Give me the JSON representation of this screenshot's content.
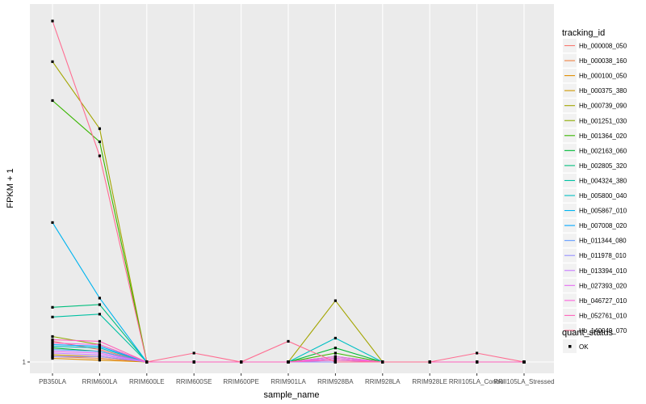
{
  "chart_data": {
    "type": "line",
    "xlabel": "sample_name",
    "ylabel": "FPKM + 1",
    "y_ticks": [
      "1"
    ],
    "log_scale_y": true,
    "grid": true,
    "legend_position": "right",
    "categories": [
      "PB350LA",
      "RRIM600LA",
      "RRIM600LE",
      "RRIM600SE",
      "RRIM600PE",
      "RRIM901LA",
      "RRIM928BA",
      "RRIM928LA",
      "RRIM928LE",
      "RRII105LA_Control",
      "RRII105LA_Stressed"
    ],
    "legend_title": "tracking_id",
    "point_legend_title": "quant_status",
    "point_legend_entry": "OK",
    "series": [
      {
        "name": "Hb_000008_050",
        "color": "#F8766D",
        "values": [
          1.12,
          1.07,
          1,
          1,
          1,
          1,
          1,
          1,
          1,
          1,
          1
        ]
      },
      {
        "name": "Hb_000038_160",
        "color": "#EE8043",
        "values": [
          1.03,
          1.02,
          1,
          1,
          1,
          1,
          1,
          1,
          1,
          1,
          1
        ]
      },
      {
        "name": "Hb_000100_050",
        "color": "#DF8D00",
        "values": [
          1.02,
          1.01,
          1,
          1,
          1,
          1,
          1,
          1,
          1,
          1,
          1
        ]
      },
      {
        "name": "Hb_000375_380",
        "color": "#CD9600",
        "values": [
          1.04,
          1.03,
          1,
          1,
          1,
          1,
          1,
          1,
          1,
          1,
          1
        ]
      },
      {
        "name": "Hb_000739_090",
        "color": "#A3A500",
        "values": [
          5.2,
          3.6,
          1,
          1,
          1,
          1,
          1.4,
          1,
          1,
          1,
          1
        ]
      },
      {
        "name": "Hb_001251_030",
        "color": "#8EAB00",
        "values": [
          1.15,
          1.1,
          1,
          1,
          1,
          1,
          1.03,
          1,
          1,
          1,
          1
        ]
      },
      {
        "name": "Hb_001364_020",
        "color": "#39B600",
        "values": [
          4.2,
          3.35,
          1,
          1,
          1,
          1,
          1.05,
          1,
          1,
          1,
          1
        ]
      },
      {
        "name": "Hb_002163_060",
        "color": "#00BA38",
        "values": [
          1.08,
          1.06,
          1,
          1,
          1,
          1,
          1.08,
          1,
          1,
          1,
          1
        ]
      },
      {
        "name": "Hb_002805_320",
        "color": "#00BF7D",
        "values": [
          1.35,
          1.37,
          1,
          1,
          1,
          1,
          1,
          1,
          1,
          1,
          1
        ]
      },
      {
        "name": "Hb_004324_380",
        "color": "#00C1A3",
        "values": [
          1.28,
          1.3,
          1,
          1,
          1,
          1,
          1.02,
          1,
          1,
          1,
          1
        ]
      },
      {
        "name": "Hb_005800_040",
        "color": "#00BFC4",
        "values": [
          1.09,
          1.08,
          1,
          1,
          1,
          1,
          1.14,
          1,
          1,
          1,
          1
        ]
      },
      {
        "name": "Hb_005867_010",
        "color": "#00B4EF",
        "values": [
          2.15,
          1.42,
          1,
          1,
          1,
          1,
          1,
          1,
          1,
          1,
          1
        ]
      },
      {
        "name": "Hb_007008_020",
        "color": "#00A9FF",
        "values": [
          1.1,
          1.09,
          1,
          1,
          1,
          1,
          1,
          1,
          1,
          1,
          1
        ]
      },
      {
        "name": "Hb_011344_080",
        "color": "#619CFF",
        "values": [
          1.07,
          1.06,
          1,
          1,
          1,
          1,
          1.01,
          1,
          1,
          1,
          1
        ]
      },
      {
        "name": "Hb_011978_010",
        "color": "#9590FF",
        "values": [
          1.03,
          1.03,
          1,
          1,
          1,
          1,
          1,
          1,
          1,
          1,
          1
        ]
      },
      {
        "name": "Hb_013394_010",
        "color": "#C77CFF",
        "values": [
          1.05,
          1.04,
          1,
          1,
          1,
          1,
          1.02,
          1,
          1,
          1,
          1
        ]
      },
      {
        "name": "Hb_027393_020",
        "color": "#E76BF3",
        "values": [
          1.06,
          1.05,
          1,
          1,
          1,
          1,
          1.03,
          1,
          1,
          1,
          1
        ]
      },
      {
        "name": "Hb_046727_010",
        "color": "#FA62DB",
        "values": [
          1.11,
          1.1,
          1,
          1,
          1,
          1,
          1.02,
          1,
          1,
          1,
          1
        ]
      },
      {
        "name": "Hb_052761_010",
        "color": "#FF62BC",
        "values": [
          1.13,
          1.12,
          1,
          1,
          1,
          1,
          1.01,
          1,
          1,
          1,
          1
        ]
      },
      {
        "name": "Hb_140049_070",
        "color": "#FF6C91",
        "values": [
          6.5,
          3.1,
          1,
          1.05,
          1,
          1.12,
          1,
          1,
          1,
          1.05,
          1
        ]
      }
    ]
  }
}
